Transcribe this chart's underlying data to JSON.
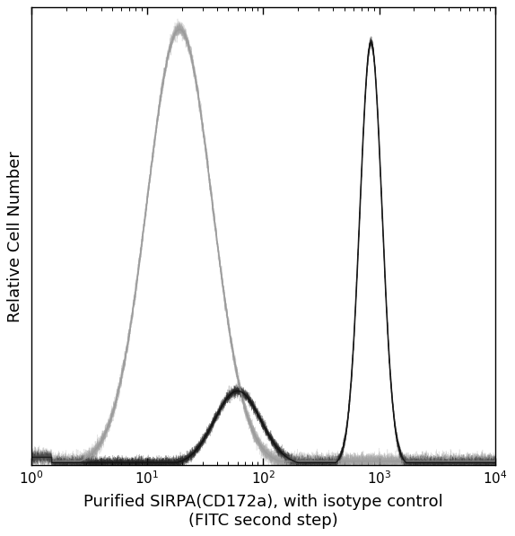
{
  "xlabel": "Purified SIRPA(CD172a), with isotype control\n(FITC second step)",
  "ylabel": "Relative Cell Number",
  "xlim_log": [
    1,
    10000
  ],
  "ylim": [
    0,
    1.05
  ],
  "background_color": "#ffffff",
  "curve_gray": {
    "color": "#999999",
    "mu_log": 1.28,
    "sigma_log": 0.28,
    "amplitude": 1.0
  },
  "curve_dark": {
    "color": "#111111",
    "main_mu_log": 2.93,
    "main_sigma_log": 0.095,
    "main_amplitude": 0.97,
    "small_mu_log": 1.78,
    "small_sigma_log": 0.2,
    "small_amplitude": 0.17
  },
  "noise_amplitude_gray": 0.008,
  "noise_amplitude_dark": 0.006,
  "xlabel_fontsize": 13,
  "ylabel_fontsize": 13,
  "tick_labelsize": 11
}
